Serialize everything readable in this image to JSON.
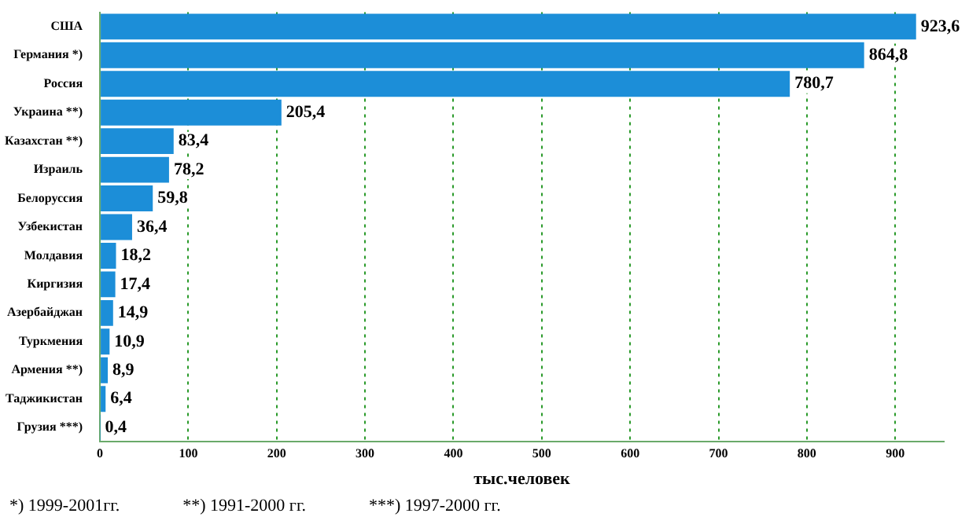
{
  "chart_data": {
    "type": "bar",
    "orientation": "horizontal",
    "categories": [
      "США",
      "Германия *)",
      "Россия",
      "Украина **)",
      "Казахстан **)",
      "Израиль",
      "Белоруссия",
      "Узбекистан",
      "Молдавия",
      "Киргизия",
      "Азербайджан",
      "Туркмения",
      "Армения **)",
      "Таджикистан",
      "Грузия ***)"
    ],
    "values": [
      923.6,
      864.8,
      780.7,
      205.4,
      83.4,
      78.2,
      59.8,
      36.4,
      18.2,
      17.4,
      14.9,
      10.9,
      8.9,
      6.4,
      0.4
    ],
    "value_labels": [
      "923,6",
      "864,8",
      "780,7",
      "205,4",
      "83,4",
      "78,2",
      "59,8",
      "36,4",
      "18,2",
      "17,4",
      "14,9",
      "10,9",
      "8,9",
      "6,4",
      "0,4"
    ],
    "color": "#1c8ed8",
    "xlim": [
      0,
      955
    ],
    "xticks": [
      0,
      100,
      200,
      300,
      400,
      500,
      600,
      700,
      800,
      900
    ],
    "xlabel": "тыс.человек",
    "grid": "x",
    "legend": false,
    "annotations": [
      "*) 1999-2001гг.",
      "**) 1991-2000 гг.",
      "***) 1997-2000 гг."
    ]
  }
}
